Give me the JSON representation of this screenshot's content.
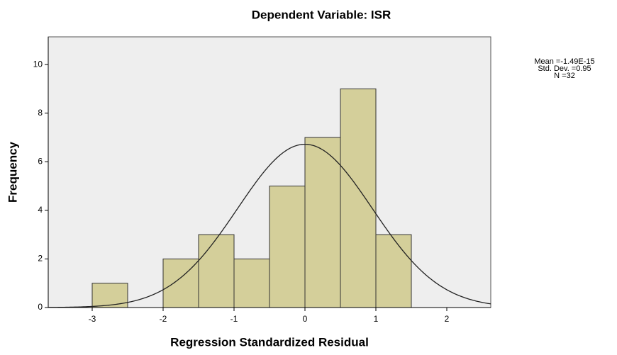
{
  "chart_data": {
    "type": "histogram",
    "title": "Dependent Variable: ISR",
    "x_label": "Regression Standardized Residual",
    "y_label": "Frequency",
    "bins": [
      -3,
      -2.5,
      -2,
      -1.5,
      -1,
      -0.5,
      0,
      0.5,
      1,
      1.5
    ],
    "counts": [
      1,
      0,
      2,
      3,
      2,
      5,
      7,
      9,
      3
    ],
    "color": "#d4cf9a",
    "edge_color": "#333333",
    "xlim": [
      -3.62,
      2.62
    ],
    "xticks": [
      -3,
      -2,
      -1,
      0,
      1,
      2
    ],
    "ylim": [
      0,
      11.14
    ],
    "yticks": [
      0,
      2,
      4,
      6,
      8,
      10
    ],
    "curve": {
      "mean": -1.49e-15,
      "sd": 0.95,
      "n": 32
    },
    "stats": [
      "Mean =-1.49E-15",
      "Std. Dev. =0.95",
      "N =32"
    ]
  }
}
